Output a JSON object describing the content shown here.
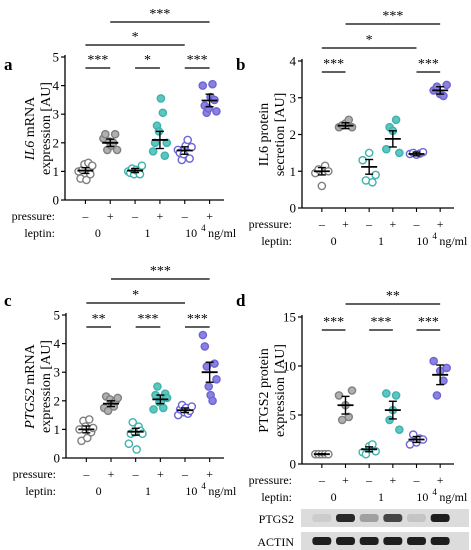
{
  "chart_data": [
    {
      "type": "scatter",
      "panel_label": "a",
      "ylabel_italic": "IL6",
      "ylabel_rest": " mRNA",
      "ylabel_line2": "expression [AU]",
      "ylim": [
        0,
        5
      ],
      "yticks": [
        "0",
        "1",
        "2",
        "3",
        "4",
        "5"
      ],
      "categories": [
        "0 −",
        "0 +",
        "1 −",
        "1 +",
        "10⁴ −",
        "10⁴ +"
      ],
      "pressure": [
        "–",
        "+",
        "–",
        "+",
        "–",
        "+"
      ],
      "leptin": [
        "0",
        "1",
        "10",
        "4",
        "ng/ml"
      ],
      "row_labels": {
        "pressure": "pressure:",
        "leptin": "leptin:"
      },
      "colors": [
        "#ffffff",
        "#b0b0b0",
        "#ffffff",
        "#5cc6c0",
        "#ffffff",
        "#8a82e0"
      ],
      "stroke_colors": [
        "#808080",
        "#808080",
        "#3fb2ac",
        "#3fb2ac",
        "#6d64d6",
        "#6d64d6"
      ],
      "means": [
        1.03,
        2.0,
        1.03,
        2.1,
        1.73,
        3.48
      ],
      "sems": [
        0.1,
        0.13,
        0.07,
        0.3,
        0.13,
        0.22
      ],
      "points": [
        [
          1.0,
          0.75,
          1.05,
          1.25,
          0.7,
          1.3,
          0.9,
          1.2
        ],
        [
          2.15,
          2.3,
          1.75,
          2.05,
          1.9,
          2.0,
          2.3,
          1.75
        ],
        [
          1.0,
          0.95,
          1.1,
          0.9,
          1.05,
          1.0,
          0.9,
          1.2
        ],
        [
          1.7,
          2.0,
          2.6,
          2.4,
          3.55,
          3.05,
          1.55,
          2.0
        ],
        [
          1.75,
          1.65,
          1.4,
          1.6,
          1.9,
          2.1,
          1.45,
          1.85
        ],
        [
          4.0,
          3.3,
          3.05,
          3.2,
          3.6,
          4.05,
          3.5,
          3.1
        ]
      ],
      "significance": [
        {
          "from": 0,
          "to": 1,
          "label": "***",
          "level": 1
        },
        {
          "from": 2,
          "to": 3,
          "label": "*",
          "level": 1
        },
        {
          "from": 4,
          "to": 5,
          "label": "***",
          "level": 1
        },
        {
          "from": 0,
          "to": 4,
          "label": "*",
          "level": 2
        },
        {
          "from": 1,
          "to": 5,
          "label": "***",
          "level": 3
        }
      ]
    },
    {
      "type": "scatter",
      "panel_label": "b",
      "ylabel_italic": "",
      "ylabel_rest": "IL6 protein",
      "ylabel_line2": "secretion [AU]",
      "ylim": [
        0,
        4
      ],
      "yticks": [
        "0",
        "1",
        "2",
        "3",
        "4"
      ],
      "categories": [
        "0 −",
        "0 +",
        "1 −",
        "1 +",
        "10⁴ −",
        "10⁴ +"
      ],
      "pressure": [
        "–",
        "+",
        "–",
        "+",
        "–",
        "+"
      ],
      "leptin": [
        "0",
        "1",
        "10",
        "4",
        "ng/ml"
      ],
      "row_labels": {
        "pressure": "pressure:",
        "leptin": "leptin:"
      },
      "colors": [
        "#ffffff",
        "#b0b0b0",
        "#ffffff",
        "#5cc6c0",
        "#ffffff",
        "#8a82e0"
      ],
      "stroke_colors": [
        "#808080",
        "#808080",
        "#3fb2ac",
        "#3fb2ac",
        "#6d64d6",
        "#6d64d6"
      ],
      "means": [
        1.0,
        2.24,
        1.12,
        1.88,
        1.47,
        3.2
      ],
      "sems": [
        0.1,
        0.08,
        0.2,
        0.22,
        0.05,
        0.1
      ],
      "points": [
        [
          0.95,
          1.05,
          0.6,
          1.15,
          1.0
        ],
        [
          2.2,
          2.25,
          2.3,
          2.4,
          2.2
        ],
        [
          1.3,
          0.75,
          1.5,
          0.7,
          0.9
        ],
        [
          1.6,
          2.2,
          2.1,
          2.4,
          1.5
        ],
        [
          1.47,
          1.5,
          1.45,
          1.48,
          1.52
        ],
        [
          3.2,
          3.3,
          3.1,
          3.05,
          3.35
        ]
      ],
      "significance": [
        {
          "from": 0,
          "to": 1,
          "label": "***",
          "level": 1
        },
        {
          "from": 4,
          "to": 5,
          "label": "***",
          "level": 1
        },
        {
          "from": 0,
          "to": 4,
          "label": "*",
          "level": 2
        },
        {
          "from": 1,
          "to": 5,
          "label": "***",
          "level": 3
        }
      ]
    },
    {
      "type": "scatter",
      "panel_label": "c",
      "ylabel_italic": "PTGS2",
      "ylabel_rest": " mRNA",
      "ylabel_line2": "expression [AU]",
      "ylim": [
        0,
        5
      ],
      "yticks": [
        "0",
        "1",
        "2",
        "3",
        "4",
        "5"
      ],
      "categories": [
        "0 −",
        "0 +",
        "1 −",
        "1 +",
        "10⁴ −",
        "10⁴ +"
      ],
      "pressure": [
        "–",
        "+",
        "–",
        "+",
        "–",
        "+"
      ],
      "leptin": [
        "0",
        "1",
        "10",
        "4",
        "ng/ml"
      ],
      "row_labels": {
        "pressure": "pressure:",
        "leptin": "leptin:"
      },
      "colors": [
        "#ffffff",
        "#b0b0b0",
        "#ffffff",
        "#5cc6c0",
        "#ffffff",
        "#8a82e0"
      ],
      "stroke_colors": [
        "#808080",
        "#808080",
        "#3fb2ac",
        "#3fb2ac",
        "#6d64d6",
        "#6d64d6"
      ],
      "means": [
        1.0,
        1.9,
        0.92,
        2.05,
        1.67,
        3.0
      ],
      "sems": [
        0.12,
        0.1,
        0.12,
        0.15,
        0.08,
        0.35
      ],
      "points": [
        [
          1.0,
          0.6,
          1.3,
          1.1,
          0.7,
          1.35,
          0.9,
          1.05
        ],
        [
          1.75,
          2.15,
          1.65,
          2.05,
          1.9,
          1.8,
          2.0,
          2.1
        ],
        [
          0.5,
          0.85,
          1.25,
          0.9,
          0.3,
          1.1,
          0.95,
          0.85
        ],
        [
          1.7,
          2.2,
          2.5,
          1.95,
          2.0,
          1.75,
          2.25,
          2.1
        ],
        [
          1.5,
          1.7,
          1.85,
          1.6,
          1.75,
          1.55,
          1.65,
          1.8
        ],
        [
          4.3,
          3.9,
          3.2,
          2.5,
          2.2,
          2.0,
          3.3,
          2.75
        ]
      ],
      "significance": [
        {
          "from": 0,
          "to": 1,
          "label": "**",
          "level": 1
        },
        {
          "from": 2,
          "to": 3,
          "label": "***",
          "level": 1
        },
        {
          "from": 4,
          "to": 5,
          "label": "***",
          "level": 1
        },
        {
          "from": 0,
          "to": 4,
          "label": "*",
          "level": 2
        },
        {
          "from": 1,
          "to": 5,
          "label": "***",
          "level": 3
        }
      ]
    },
    {
      "type": "scatter",
      "panel_label": "d",
      "ylabel_italic": "",
      "ylabel_rest": "PTGS2 protein",
      "ylabel_line2": "expression [AU]",
      "ylim": [
        0,
        15
      ],
      "yticks": [
        "0",
        "5",
        "10",
        "15"
      ],
      "categories": [
        "0 −",
        "0 +",
        "1 −",
        "1 +",
        "10⁴ −",
        "10⁴ +"
      ],
      "pressure": [
        "–",
        "+",
        "–",
        "+",
        "–",
        "+"
      ],
      "leptin": [
        "0",
        "1",
        "10",
        "4",
        "ng/ml"
      ],
      "row_labels": {
        "pressure": "pressure:",
        "leptin": "leptin:"
      },
      "colors": [
        "#ffffff",
        "#b0b0b0",
        "#ffffff",
        "#5cc6c0",
        "#ffffff",
        "#8a82e0"
      ],
      "stroke_colors": [
        "#808080",
        "#808080",
        "#3fb2ac",
        "#3fb2ac",
        "#6d64d6",
        "#6d64d6"
      ],
      "means": [
        1.0,
        6.0,
        1.5,
        5.5,
        2.5,
        9.1
      ],
      "sems": [
        0.05,
        0.9,
        0.25,
        0.9,
        0.3,
        1.0
      ],
      "points": [
        [
          1.0,
          1.0,
          1.0,
          1.0,
          1.0
        ],
        [
          7.0,
          4.5,
          6.0,
          4.8,
          7.5
        ],
        [
          1.2,
          1.0,
          1.8,
          2.0,
          1.3
        ],
        [
          7.2,
          4.5,
          5.5,
          7.0,
          3.5
        ],
        [
          2.0,
          3.0,
          2.2,
          2.6,
          2.5
        ],
        [
          10.5,
          7.0,
          9.5,
          8.5,
          9.8
        ]
      ],
      "significance": [
        {
          "from": 0,
          "to": 1,
          "label": "***",
          "level": 1
        },
        {
          "from": 2,
          "to": 3,
          "label": "***",
          "level": 1
        },
        {
          "from": 4,
          "to": 5,
          "label": "***",
          "level": 1
        },
        {
          "from": 1,
          "to": 5,
          "label": "**",
          "level": 2
        }
      ]
    }
  ],
  "blot": {
    "lanes": 6,
    "rows": [
      {
        "label": "PTGS2",
        "intensities": [
          0.08,
          0.9,
          0.3,
          0.75,
          0.12,
          0.95
        ]
      },
      {
        "label": "ACTIN",
        "intensities": [
          0.95,
          0.95,
          0.95,
          0.95,
          0.95,
          0.95
        ]
      }
    ]
  }
}
